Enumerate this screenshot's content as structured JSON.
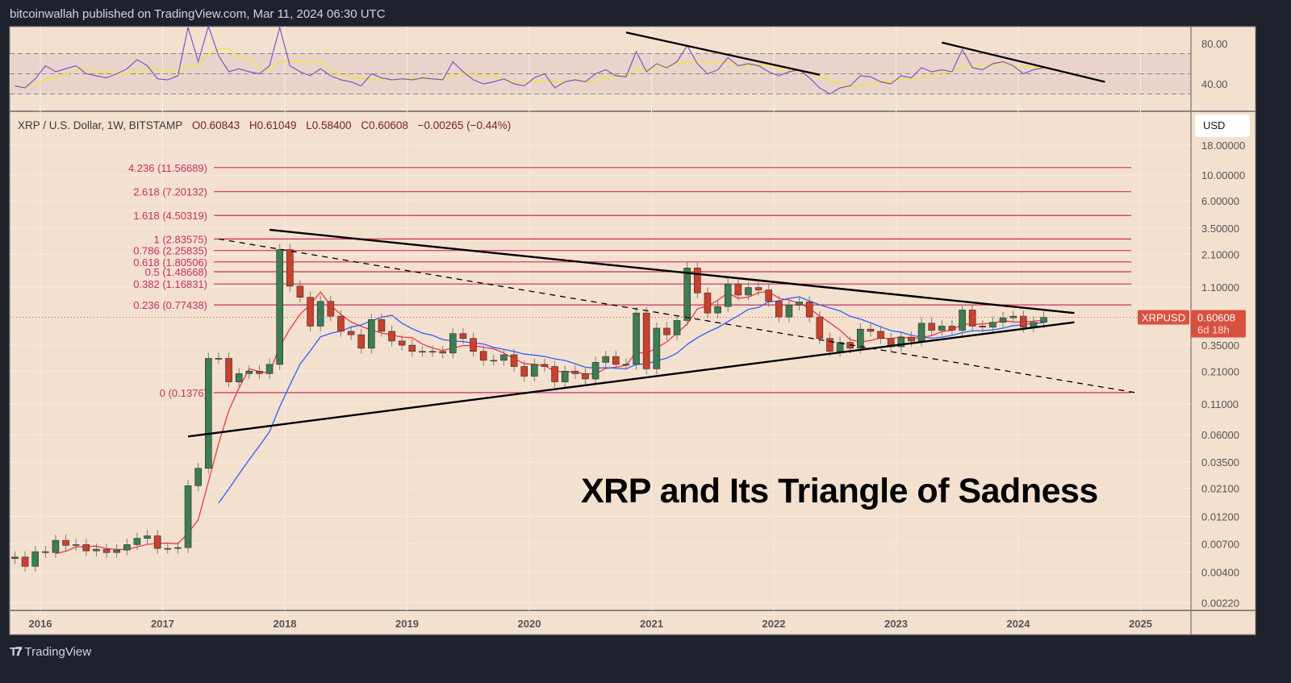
{
  "header": {
    "published": "bitcoinwallah published on TradingView.com, Mar 11, 2024 06:30 UTC"
  },
  "legend": {
    "symbol": "XRP / U.S. Dollar, 1W, BITSTAMP",
    "open": "O0.60843",
    "high": "H0.61049",
    "low": "L0.58400",
    "close": "C0.60608",
    "change": "−0.00265 (−0.44%)"
  },
  "currency_button": "USD",
  "price_label": {
    "symbol": "XRPUSD",
    "price": "0.60608",
    "countdown": "6d 18h"
  },
  "annotation_title": "XRP and Its Triangle of Sadness",
  "footer": {
    "brand": "TradingView",
    "logo_mark": "17"
  },
  "colors": {
    "background": "#1e222d",
    "pane": "#f3e0cf",
    "rsi_band": "#ead3cb",
    "up": "#3b7d55",
    "down": "#c8412e",
    "fib": "#cc2e5e",
    "ma_fast": "#f23645",
    "ma_slow": "#2962ff",
    "rsi_line": "#7e57c2",
    "rsi_ma": "#f5e727",
    "price_tag": "#d9503f",
    "trendline": "#000000"
  },
  "chart_data": [
    {
      "type": "candlestick",
      "scale": "log",
      "grid": true,
      "y_ticks": [
        "18.00000",
        "10.00000",
        "6.00000",
        "3.50000",
        "2.10000",
        "1.10000",
        "0.35000",
        "0.21000",
        "0.11000",
        "0.06000",
        "0.03500",
        "0.02100",
        "0.01200",
        "0.00700",
        "0.00400",
        "0.00220"
      ],
      "x_ticks": [
        "2016",
        "2017",
        "2018",
        "2019",
        "2020",
        "2021",
        "2022",
        "2023",
        "2024",
        "2025"
      ],
      "dates": [
        "2015-10",
        "2015-11",
        "2015-12",
        "2016-01",
        "2016-02",
        "2016-03",
        "2016-04",
        "2016-05",
        "2016-06",
        "2016-07",
        "2016-08",
        "2016-09",
        "2016-10",
        "2016-11",
        "2016-12",
        "2017-01",
        "2017-02",
        "2017-03",
        "2017-04",
        "2017-05",
        "2017-06",
        "2017-07",
        "2017-08",
        "2017-09",
        "2017-10",
        "2017-11",
        "2017-12",
        "2018-01",
        "2018-02",
        "2018-03",
        "2018-04",
        "2018-05",
        "2018-06",
        "2018-07",
        "2018-08",
        "2018-09",
        "2018-10",
        "2018-11",
        "2018-12",
        "2019-01",
        "2019-02",
        "2019-03",
        "2019-04",
        "2019-05",
        "2019-06",
        "2019-07",
        "2019-08",
        "2019-09",
        "2019-10",
        "2019-11",
        "2019-12",
        "2020-01",
        "2020-02",
        "2020-03",
        "2020-04",
        "2020-05",
        "2020-06",
        "2020-07",
        "2020-08",
        "2020-09",
        "2020-10",
        "2020-11",
        "2020-12",
        "2021-01",
        "2021-02",
        "2021-03",
        "2021-04",
        "2021-05",
        "2021-06",
        "2021-07",
        "2021-08",
        "2021-09",
        "2021-10",
        "2021-11",
        "2021-12",
        "2022-01",
        "2022-02",
        "2022-03",
        "2022-04",
        "2022-05",
        "2022-06",
        "2022-07",
        "2022-08",
        "2022-09",
        "2022-10",
        "2022-11",
        "2022-12",
        "2023-01",
        "2023-02",
        "2023-03",
        "2023-04",
        "2023-05",
        "2023-06",
        "2023-07",
        "2023-08",
        "2023-09",
        "2023-10",
        "2023-11",
        "2023-12",
        "2024-01",
        "2024-02",
        "2024-03"
      ],
      "close": [
        0.0054,
        0.0045,
        0.006,
        0.0059,
        0.0075,
        0.0068,
        0.0069,
        0.0061,
        0.0063,
        0.0059,
        0.0062,
        0.0069,
        0.0078,
        0.0082,
        0.0064,
        0.0064,
        0.0065,
        0.022,
        0.031,
        0.27,
        0.27,
        0.17,
        0.2,
        0.21,
        0.2,
        0.24,
        2.3,
        1.12,
        0.9,
        0.51,
        0.83,
        0.62,
        0.46,
        0.43,
        0.33,
        0.58,
        0.46,
        0.38,
        0.35,
        0.31,
        0.31,
        0.31,
        0.3,
        0.44,
        0.4,
        0.31,
        0.26,
        0.26,
        0.29,
        0.23,
        0.19,
        0.24,
        0.23,
        0.17,
        0.21,
        0.2,
        0.18,
        0.25,
        0.28,
        0.24,
        0.24,
        0.66,
        0.22,
        0.49,
        0.43,
        0.57,
        1.6,
        0.98,
        0.66,
        0.75,
        1.17,
        0.94,
        1.09,
        1.04,
        0.83,
        0.61,
        0.77,
        0.82,
        0.61,
        0.4,
        0.31,
        0.37,
        0.33,
        0.48,
        0.46,
        0.4,
        0.34,
        0.41,
        0.38,
        0.54,
        0.47,
        0.51,
        0.47,
        0.7,
        0.51,
        0.5,
        0.55,
        0.6,
        0.62,
        0.5,
        0.55,
        0.60608
      ],
      "fib_levels": [
        {
          "label": "4.236 (11.56689)",
          "price": 11.56689
        },
        {
          "label": "2.618 (7.20132)",
          "price": 7.20132
        },
        {
          "label": "1.618 (4.50319)",
          "price": 4.50319
        },
        {
          "label": "1 (2.83575)",
          "price": 2.83575
        },
        {
          "label": "0.786 (2.25835)",
          "price": 2.25835
        },
        {
          "label": "0.618 (1.80506)",
          "price": 1.80506
        },
        {
          "label": "0.5 (1.48668)",
          "price": 1.48668
        },
        {
          "label": "0.382 (1.16831)",
          "price": 1.16831
        },
        {
          "label": "0.236 (0.77438)",
          "price": 0.77438
        },
        {
          "label": "0 (0.1376)",
          "price": 0.1376
        }
      ],
      "trendlines": [
        {
          "style": "solid",
          "from": [
            "2017-11",
            3.4
          ],
          "to": [
            "2024-06",
            0.66
          ]
        },
        {
          "style": "solid",
          "from": [
            "2017-03",
            0.058
          ],
          "to": [
            "2024-06",
            0.55
          ]
        },
        {
          "style": "dashed",
          "from": [
            "2017-06",
            2.83575
          ],
          "to": [
            "2024-12",
            0.1376
          ]
        }
      ],
      "last_price": 0.60608
    },
    {
      "type": "line",
      "name": "RSI",
      "y_ticks": [
        "80.00",
        "40.00"
      ],
      "bands": [
        70,
        50,
        30
      ],
      "rsi": [
        38,
        36,
        45,
        58,
        52,
        55,
        58,
        50,
        48,
        46,
        50,
        55,
        64,
        58,
        45,
        44,
        48,
        96,
        62,
        97,
        68,
        52,
        55,
        52,
        50,
        58,
        96,
        58,
        52,
        48,
        55,
        48,
        44,
        42,
        38,
        50,
        46,
        44,
        45,
        44,
        46,
        45,
        44,
        62,
        52,
        44,
        40,
        42,
        45,
        40,
        38,
        46,
        50,
        36,
        42,
        44,
        42,
        50,
        54,
        48,
        47,
        72,
        52,
        60,
        56,
        62,
        78,
        60,
        50,
        54,
        66,
        58,
        60,
        58,
        52,
        48,
        52,
        54,
        46,
        36,
        30,
        36,
        38,
        48,
        47,
        42,
        40,
        48,
        46,
        56,
        52,
        54,
        52,
        74,
        56,
        54,
        60,
        62,
        58,
        50,
        54,
        56
      ],
      "trendlines": [
        {
          "from": [
            "2020-10",
            91
          ],
          "to": [
            "2022-05",
            49
          ]
        },
        {
          "from": [
            "2023-05",
            81
          ],
          "to": [
            "2024-09",
            42
          ]
        }
      ]
    }
  ]
}
